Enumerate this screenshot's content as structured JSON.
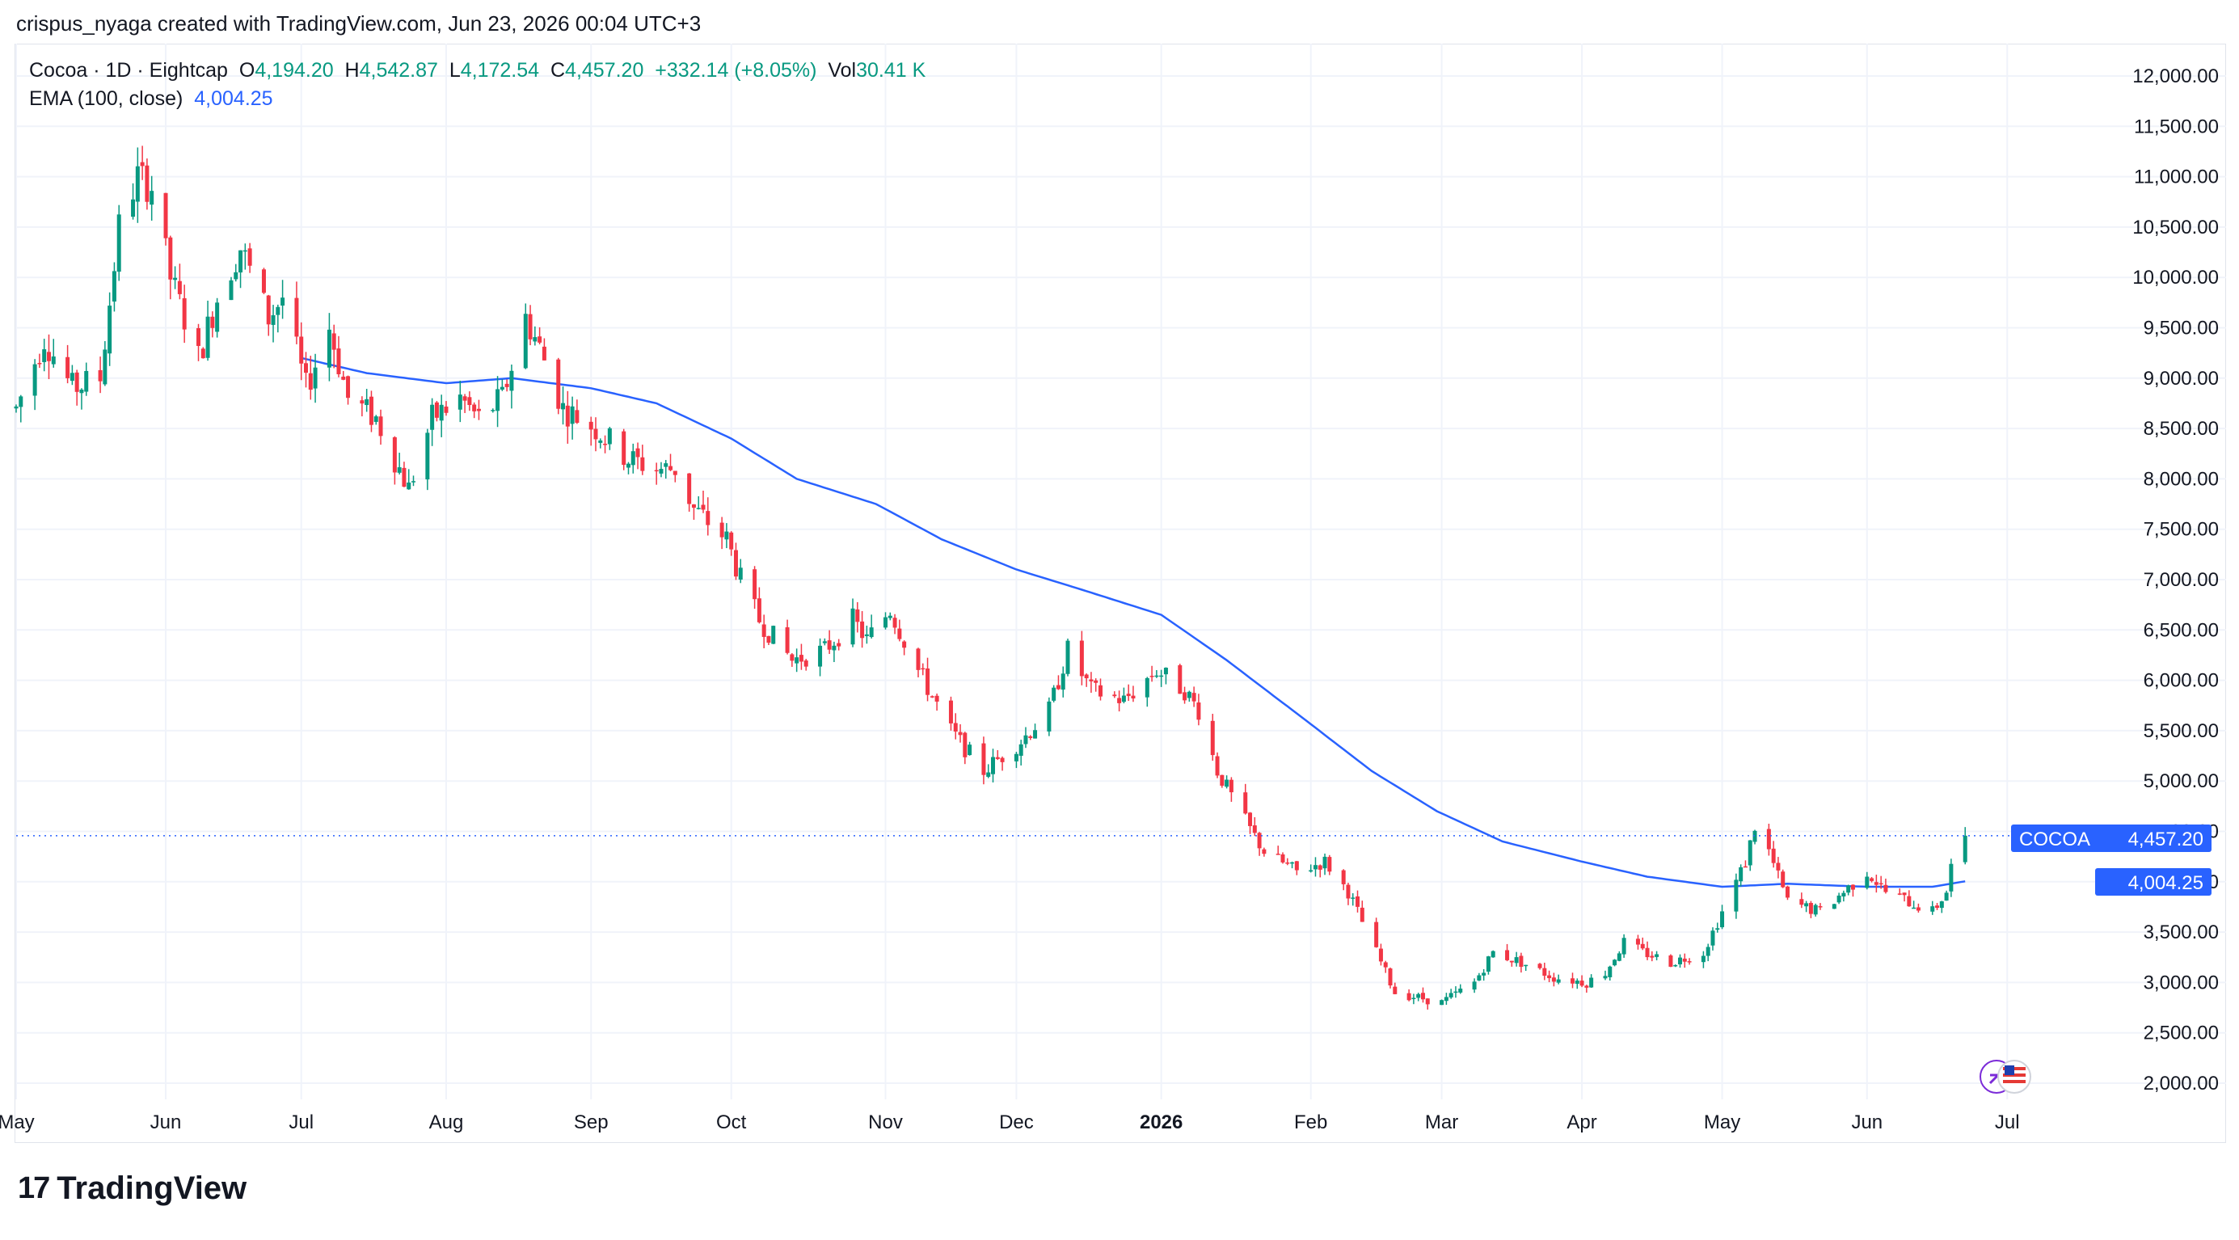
{
  "attribution": "crispus_nyaga created with TradingView.com, Jun 23, 2026 00:04 UTC+3",
  "legend": {
    "symbol": "Cocoa · 1D · Eightcap",
    "o_label": "O",
    "o_value": "4,194.20",
    "h_label": "H",
    "h_value": "4,542.87",
    "l_label": "L",
    "l_value": "4,172.54",
    "c_label": "C",
    "c_value": "4,457.20",
    "change": "+332.14 (+8.05%)",
    "vol_label": "Vol",
    "vol_value": "30.41 K",
    "ema_label": "EMA (100, close)",
    "ema_value": "4,004.25"
  },
  "price_tag": {
    "symbol": "COCOA",
    "price": "4,457.20"
  },
  "ema_tag": {
    "price": "4,004.25"
  },
  "footer": {
    "brand": "TradingView",
    "logo_mark": "17"
  },
  "colors": {
    "up": "#089981",
    "down": "#f23645",
    "ema": "#2962ff",
    "tag": "#2962ff",
    "grid": "#f0f3fa"
  },
  "chart_data": {
    "type": "candlestick",
    "y_axis": {
      "min": 2000,
      "max": 12000,
      "side": "right",
      "ticks": [
        2000,
        2500,
        3000,
        3500,
        4000,
        4500,
        5000,
        5500,
        6000,
        6500,
        7000,
        7500,
        8000,
        8500,
        9000,
        9500,
        10000,
        10500,
        11000,
        11500,
        12000
      ],
      "tick_labels": [
        "2,000.00",
        "2,500.00",
        "3,000.00",
        "3,500.00",
        "4,000.00",
        "4,500.00",
        "5,000.00",
        "5,500.00",
        "6,000.00",
        "6,500.00",
        "7,000.00",
        "7,500.00",
        "8,000.00",
        "8,500.00",
        "9,000.00",
        "9,500.00",
        "10,000.00",
        "10,500.00",
        "11,000.00",
        "11,500.00",
        "12,000.00"
      ]
    },
    "x_axis": {
      "start": "2025-05-01",
      "end": "2026-06-22",
      "view_end": "2026-07-16",
      "ticks": [
        {
          "label": "May",
          "date": "2025-05-01",
          "bold": false
        },
        {
          "label": "Jun",
          "date": "2025-06-02",
          "bold": false
        },
        {
          "label": "Jul",
          "date": "2025-07-01",
          "bold": false
        },
        {
          "label": "Aug",
          "date": "2025-08-01",
          "bold": false
        },
        {
          "label": "Sep",
          "date": "2025-09-01",
          "bold": false
        },
        {
          "label": "Oct",
          "date": "2025-10-01",
          "bold": false
        },
        {
          "label": "Nov",
          "date": "2025-11-03",
          "bold": false
        },
        {
          "label": "Dec",
          "date": "2025-12-01",
          "bold": false
        },
        {
          "label": "2026",
          "date": "2026-01-01",
          "bold": true
        },
        {
          "label": "Feb",
          "date": "2026-02-02",
          "bold": false
        },
        {
          "label": "Mar",
          "date": "2026-03-02",
          "bold": false
        },
        {
          "label": "Apr",
          "date": "2026-04-01",
          "bold": false
        },
        {
          "label": "May",
          "date": "2026-05-01",
          "bold": false
        },
        {
          "label": "Jun",
          "date": "2026-06-01",
          "bold": false
        },
        {
          "label": "Jul",
          "date": "2026-07-01",
          "bold": false
        }
      ]
    },
    "price_anchors": [
      [
        "2025-05-01",
        8700
      ],
      [
        "2025-05-07",
        9400
      ],
      [
        "2025-05-13",
        8900
      ],
      [
        "2025-05-19",
        9000
      ],
      [
        "2025-05-23",
        10500
      ],
      [
        "2025-05-27",
        11000
      ],
      [
        "2025-05-30",
        10900
      ],
      [
        "2025-06-03",
        10000
      ],
      [
        "2025-06-09",
        9200
      ],
      [
        "2025-06-13",
        9800
      ],
      [
        "2025-06-18",
        10300
      ],
      [
        "2025-06-24",
        9600
      ],
      [
        "2025-06-27",
        9800
      ],
      [
        "2025-07-02",
        8900
      ],
      [
        "2025-07-07",
        9500
      ],
      [
        "2025-07-11",
        8800
      ],
      [
        "2025-07-17",
        8600
      ],
      [
        "2025-07-22",
        8100
      ],
      [
        "2025-07-24",
        7900
      ],
      [
        "2025-07-29",
        8600
      ],
      [
        "2025-08-04",
        8800
      ],
      [
        "2025-08-08",
        8600
      ],
      [
        "2025-08-13",
        8800
      ],
      [
        "2025-08-18",
        9600
      ],
      [
        "2025-08-21",
        9300
      ],
      [
        "2025-08-26",
        8700
      ],
      [
        "2025-09-02",
        8500
      ],
      [
        "2025-09-09",
        8200
      ],
      [
        "2025-09-15",
        8100
      ],
      [
        "2025-09-19",
        8100
      ],
      [
        "2025-09-23",
        7700
      ],
      [
        "2025-09-30",
        7400
      ],
      [
        "2025-10-03",
        7000
      ],
      [
        "2025-10-07",
        6600
      ],
      [
        "2025-10-14",
        6200
      ],
      [
        "2025-10-21",
        6300
      ],
      [
        "2025-10-27",
        6600
      ],
      [
        "2025-10-30",
        6400
      ],
      [
        "2025-11-04",
        6700
      ],
      [
        "2025-11-10",
        6100
      ],
      [
        "2025-11-17",
        5500
      ],
      [
        "2025-11-24",
        5100
      ],
      [
        "2025-12-02",
        5400
      ],
      [
        "2025-12-08",
        5700
      ],
      [
        "2025-12-12",
        6300
      ],
      [
        "2025-12-17",
        5900
      ],
      [
        "2025-12-24",
        5800
      ],
      [
        "2025-12-31",
        6100
      ],
      [
        "2026-01-06",
        5900
      ],
      [
        "2026-01-09",
        5700
      ],
      [
        "2026-01-13",
        5100
      ],
      [
        "2026-01-19",
        4600
      ],
      [
        "2026-01-23",
        4300
      ],
      [
        "2026-01-30",
        4100
      ],
      [
        "2026-02-05",
        4200
      ],
      [
        "2026-02-10",
        3900
      ],
      [
        "2026-02-16",
        3300
      ],
      [
        "2026-02-20",
        2900
      ],
      [
        "2026-02-25",
        2850
      ],
      [
        "2026-03-02",
        2800
      ],
      [
        "2026-03-09",
        3000
      ],
      [
        "2026-03-13",
        3300
      ],
      [
        "2026-03-19",
        3200
      ],
      [
        "2026-03-26",
        3050
      ],
      [
        "2026-04-02",
        3000
      ],
      [
        "2026-04-06",
        3100
      ],
      [
        "2026-04-10",
        3400
      ],
      [
        "2026-04-14",
        3300
      ],
      [
        "2026-04-20",
        3200
      ],
      [
        "2026-04-27",
        3300
      ],
      [
        "2026-05-01",
        3700
      ],
      [
        "2026-05-06",
        4200
      ],
      [
        "2026-05-08",
        4550
      ],
      [
        "2026-05-11",
        4300
      ],
      [
        "2026-05-15",
        3800
      ],
      [
        "2026-05-22",
        3700
      ],
      [
        "2026-05-27",
        3900
      ],
      [
        "2026-06-01",
        4100
      ],
      [
        "2026-06-05",
        3900
      ],
      [
        "2026-06-10",
        3800
      ],
      [
        "2026-06-15",
        3700
      ],
      [
        "2026-06-18",
        3900
      ],
      [
        "2026-06-19",
        4150
      ],
      [
        "2026-06-22",
        4457.2
      ]
    ],
    "ema_anchors": [
      [
        "2025-07-01",
        9200
      ],
      [
        "2025-07-15",
        9050
      ],
      [
        "2025-08-01",
        8950
      ],
      [
        "2025-08-15",
        9000
      ],
      [
        "2025-09-01",
        8900
      ],
      [
        "2025-09-15",
        8750
      ],
      [
        "2025-10-01",
        8400
      ],
      [
        "2025-10-15",
        8000
      ],
      [
        "2025-11-01",
        7750
      ],
      [
        "2025-11-15",
        7400
      ],
      [
        "2025-12-01",
        7100
      ],
      [
        "2025-12-15",
        6900
      ],
      [
        "2026-01-01",
        6650
      ],
      [
        "2026-01-15",
        6200
      ],
      [
        "2026-02-01",
        5600
      ],
      [
        "2026-02-15",
        5100
      ],
      [
        "2026-03-01",
        4700
      ],
      [
        "2026-03-15",
        4400
      ],
      [
        "2026-04-01",
        4200
      ],
      [
        "2026-04-15",
        4050
      ],
      [
        "2026-05-01",
        3950
      ],
      [
        "2026-05-15",
        3980
      ],
      [
        "2026-06-01",
        3950
      ],
      [
        "2026-06-15",
        3950
      ],
      [
        "2026-06-22",
        4004.25
      ]
    ],
    "last_candle": {
      "date": "2026-06-22",
      "open": 4194.2,
      "high": 4542.87,
      "low": 4172.54,
      "close": 4457.2,
      "volume": "30.41 K"
    },
    "last_price": 4457.2,
    "ema_last": 4004.25,
    "grid": true
  }
}
